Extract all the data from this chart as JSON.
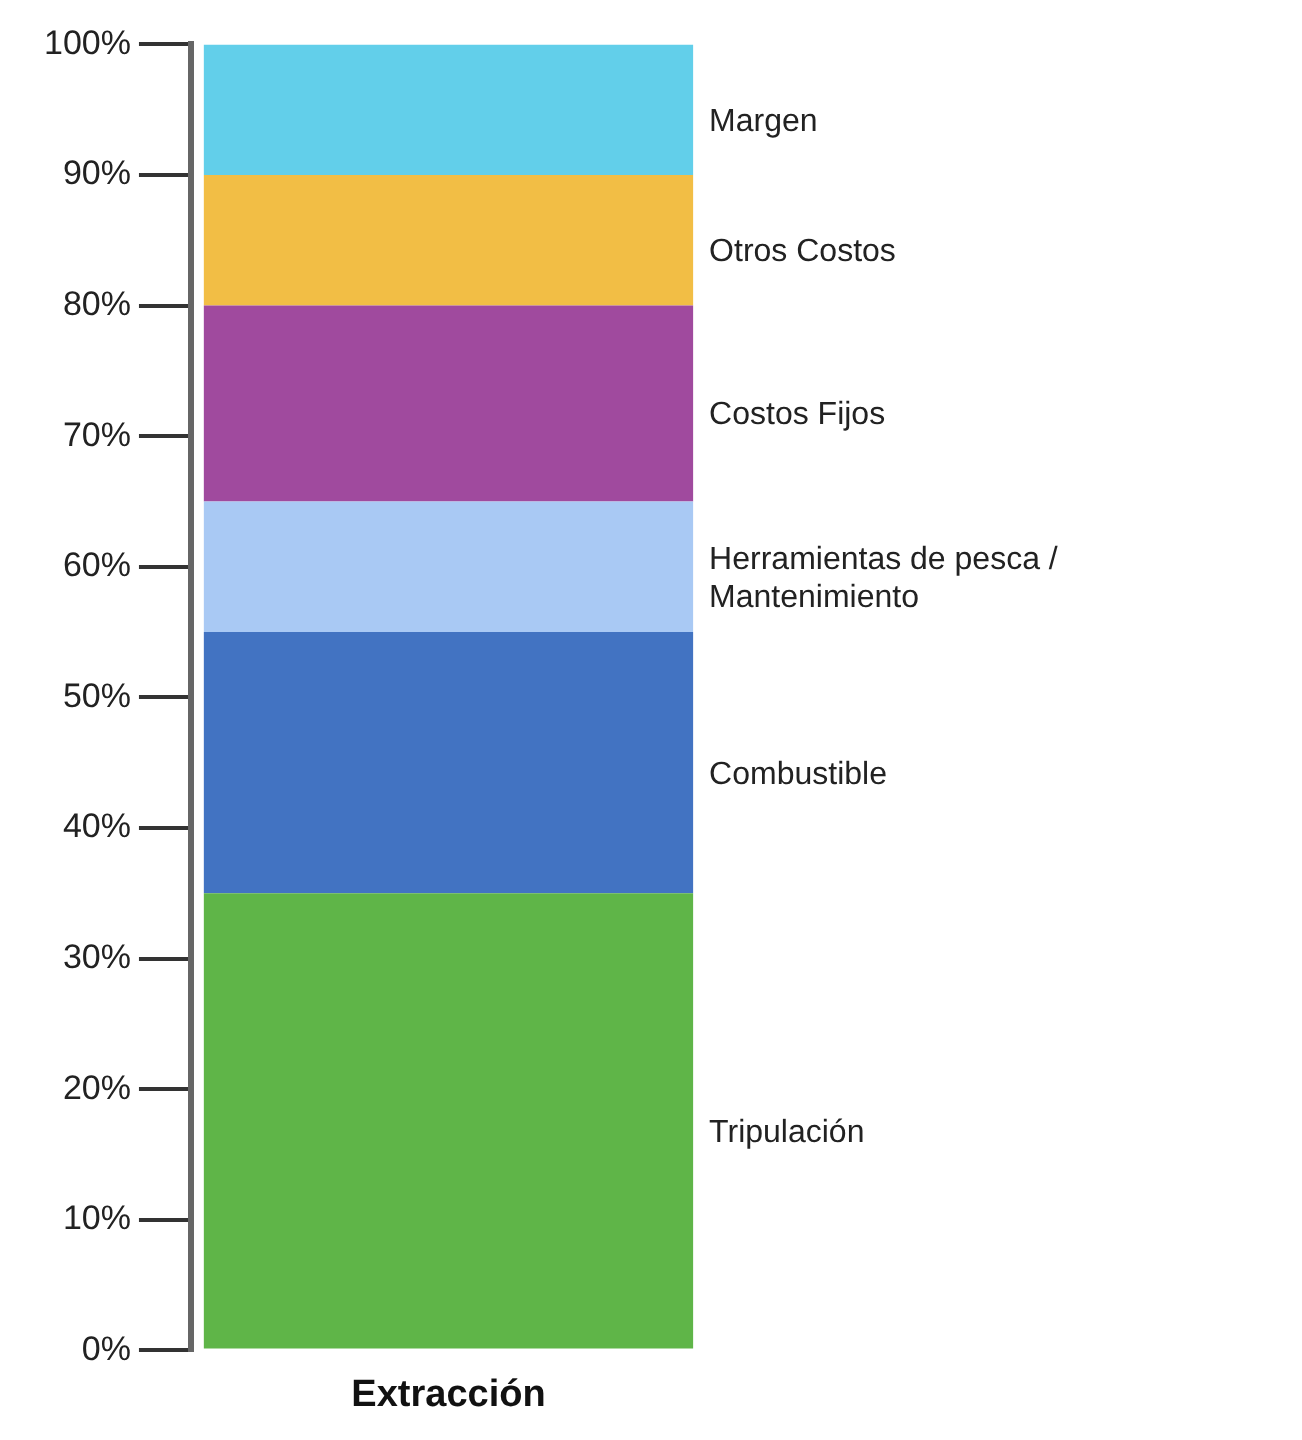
{
  "chart_data": {
    "type": "bar",
    "stacked": true,
    "categories": [
      "Extracción"
    ],
    "series": [
      {
        "name": "Tripulación",
        "color": "#5fb548",
        "values": [
          35
        ]
      },
      {
        "name": "Combustible",
        "color": "#4273c2",
        "values": [
          20
        ]
      },
      {
        "name": "Herramientas de pesca / Mantenimiento",
        "color": "#a9c9f4",
        "values": [
          10
        ]
      },
      {
        "name": "Costos Fijos",
        "color": "#a04a9e",
        "values": [
          15
        ]
      },
      {
        "name": "Otros Costos",
        "color": "#f2be45",
        "values": [
          10
        ]
      },
      {
        "name": "Margen",
        "color": "#62cfea",
        "values": [
          10
        ]
      }
    ],
    "ylim": [
      0,
      100
    ],
    "yticks": [
      {
        "value": 0,
        "label": "0%"
      },
      {
        "value": 10,
        "label": "10%"
      },
      {
        "value": 20,
        "label": "20%"
      },
      {
        "value": 30,
        "label": "30%"
      },
      {
        "value": 40,
        "label": "40%"
      },
      {
        "value": 50,
        "label": "50%"
      },
      {
        "value": 60,
        "label": "60%"
      },
      {
        "value": 70,
        "label": "70%"
      },
      {
        "value": 80,
        "label": "80%"
      },
      {
        "value": 90,
        "label": "90%"
      },
      {
        "value": 100,
        "label": "100%"
      }
    ],
    "grid": false,
    "legend": false
  }
}
